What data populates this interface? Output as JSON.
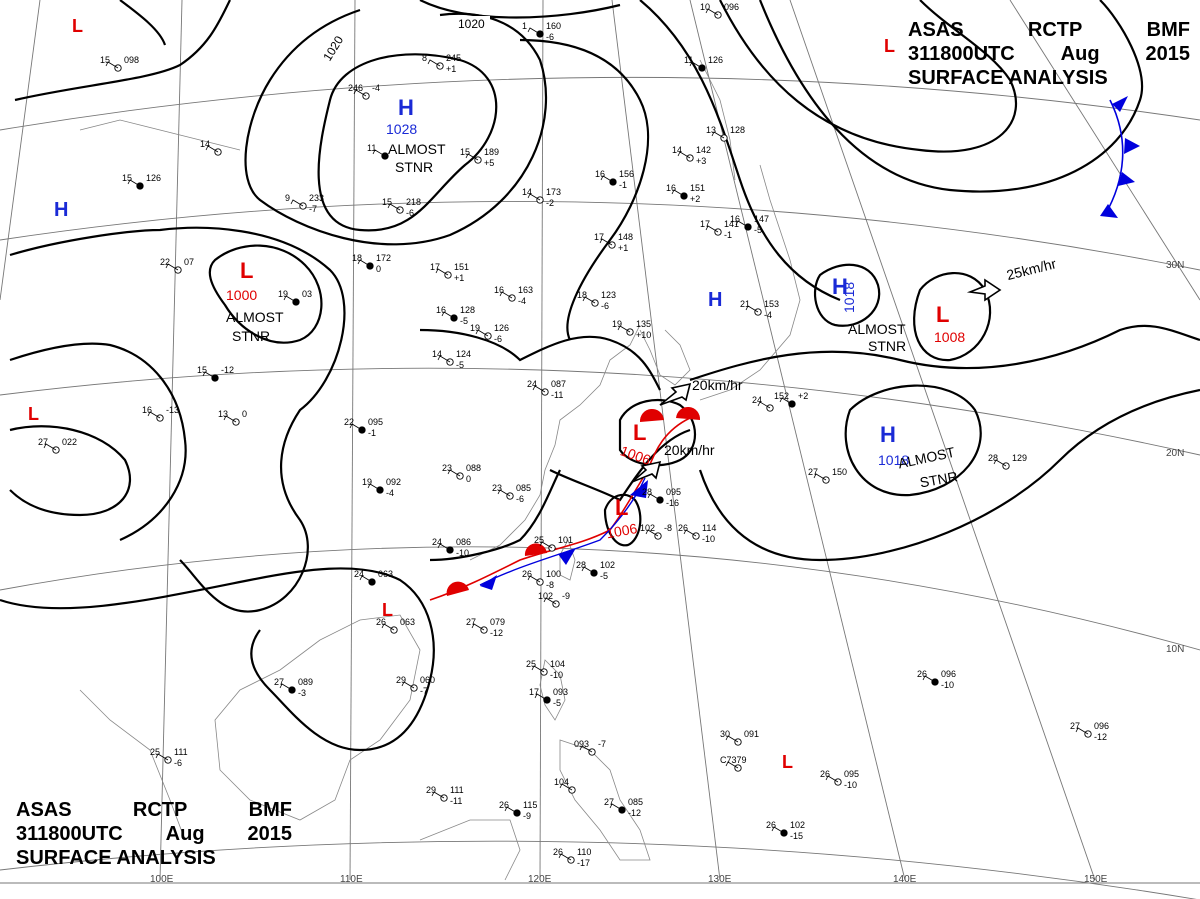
{
  "header": {
    "line1": [
      "ASAS",
      "RCTP",
      "BMF"
    ],
    "line2": [
      "311800UTC",
      "Aug",
      "2015"
    ],
    "line3": "SURFACE  ANALYSIS"
  },
  "footer": {
    "line1": [
      "ASAS",
      "RCTP",
      "BMF"
    ],
    "line2": [
      "311800UTC",
      "Aug",
      "2015"
    ],
    "line3": "SURFACE  ANALYSIS"
  },
  "grid": {
    "longitudes": [
      "100E",
      "110E",
      "120E",
      "130E",
      "140E",
      "150E"
    ],
    "latitudes": [
      "30N",
      "20N",
      "10N"
    ]
  },
  "isobars": {
    "north_a": "1020",
    "north_b": "1020"
  },
  "pressure_systems": [
    {
      "type": "H",
      "value": "1028",
      "note_line1": "ALMOST",
      "note_line2": "STNR"
    },
    {
      "type": "L",
      "value": "1000",
      "note_line1": "ALMOST",
      "note_line2": "STNR"
    },
    {
      "type": "H",
      "value": "1018",
      "note_line1": "ALMOST",
      "note_line2": "STNR"
    },
    {
      "type": "L",
      "value": "1008"
    },
    {
      "type": "H",
      "value": "1018",
      "note_line1": "ALMOST",
      "note_line2": "STNR"
    },
    {
      "type": "L",
      "value": "1006"
    },
    {
      "type": "L",
      "value": "1006"
    },
    {
      "type": "H"
    },
    {
      "type": "H"
    },
    {
      "type": "L"
    },
    {
      "type": "L"
    },
    {
      "type": "L"
    },
    {
      "type": "L"
    }
  ],
  "motion_labels": [
    "25km/hr",
    "20km/hr",
    "20km/hr"
  ],
  "station_plots": [
    [
      "1",
      "160",
      "-6"
    ],
    [
      "8",
      "245",
      "+1"
    ],
    [
      "246",
      "-4"
    ],
    [
      "11"
    ],
    [
      "15",
      "098"
    ],
    [
      "14"
    ],
    [
      "15",
      "126"
    ],
    [
      "15",
      "189",
      "+5"
    ],
    [
      "14",
      "173",
      "-2"
    ],
    [
      "16",
      "156",
      "-1"
    ],
    [
      "9",
      "233",
      "-7"
    ],
    [
      "15",
      "218",
      "-6"
    ],
    [
      "18",
      "172",
      "0"
    ],
    [
      "17",
      "151",
      "+1"
    ],
    [
      "22",
      "07"
    ],
    [
      "19",
      "03"
    ],
    [
      "16",
      "163",
      "-4"
    ],
    [
      "18",
      "123",
      "-6"
    ],
    [
      "16",
      "128",
      "-5"
    ],
    [
      "19",
      "126",
      "-6"
    ],
    [
      "14",
      "124",
      "-5"
    ],
    [
      "15",
      "-12"
    ],
    [
      "16",
      "-13"
    ],
    [
      "13",
      "0"
    ],
    [
      "22",
      "095",
      "-1"
    ],
    [
      "27",
      "022"
    ],
    [
      "23",
      "088",
      "0"
    ],
    [
      "19",
      "092",
      "-4"
    ],
    [
      "23",
      "085",
      "-6"
    ],
    [
      "24",
      "087",
      "-11"
    ],
    [
      "24",
      "086",
      "-10"
    ],
    [
      "25",
      "101"
    ],
    [
      "26",
      "100",
      "-8"
    ],
    [
      "24",
      "063"
    ],
    [
      "26",
      "063"
    ],
    [
      "27",
      "079",
      "-12"
    ],
    [
      "28",
      "102",
      "-5"
    ],
    [
      "102",
      "-9"
    ],
    [
      "29",
      "060",
      "-7"
    ],
    [
      "27",
      "089",
      "-3"
    ],
    [
      "25",
      "111",
      "-6"
    ],
    [
      "29",
      "111",
      "-11"
    ],
    [
      "26",
      "115",
      "-9"
    ],
    [
      "26",
      "110",
      "-17"
    ],
    [
      "25",
      "104",
      "-10"
    ],
    [
      "17",
      "093",
      "-5"
    ],
    [
      "093",
      "-7"
    ],
    [
      "104"
    ],
    [
      "27",
      "085",
      "-12"
    ],
    [
      "30",
      "091"
    ],
    [
      "C7379"
    ],
    [
      "26",
      "096",
      "-10"
    ],
    [
      "27",
      "096",
      "-12"
    ],
    [
      "26",
      "095",
      "-10"
    ],
    [
      "26",
      "102",
      "-15"
    ],
    [
      "27",
      "150"
    ],
    [
      "28",
      "129"
    ],
    [
      "152",
      "+2"
    ],
    [
      "24"
    ],
    [
      "21",
      "153",
      "-4"
    ],
    [
      "16",
      "147",
      "-5"
    ],
    [
      "17",
      "141",
      "-1"
    ],
    [
      "17",
      "148",
      "+1"
    ],
    [
      "16",
      "151",
      "+2"
    ],
    [
      "14",
      "142",
      "+3"
    ],
    [
      "13",
      "128"
    ],
    [
      "11",
      "126"
    ],
    [
      "10",
      "096"
    ],
    [
      "19",
      "135",
      "+10"
    ],
    [
      "28",
      "095",
      "-16"
    ],
    [
      "102",
      "-8"
    ],
    [
      "26",
      "114",
      "-10"
    ]
  ]
}
